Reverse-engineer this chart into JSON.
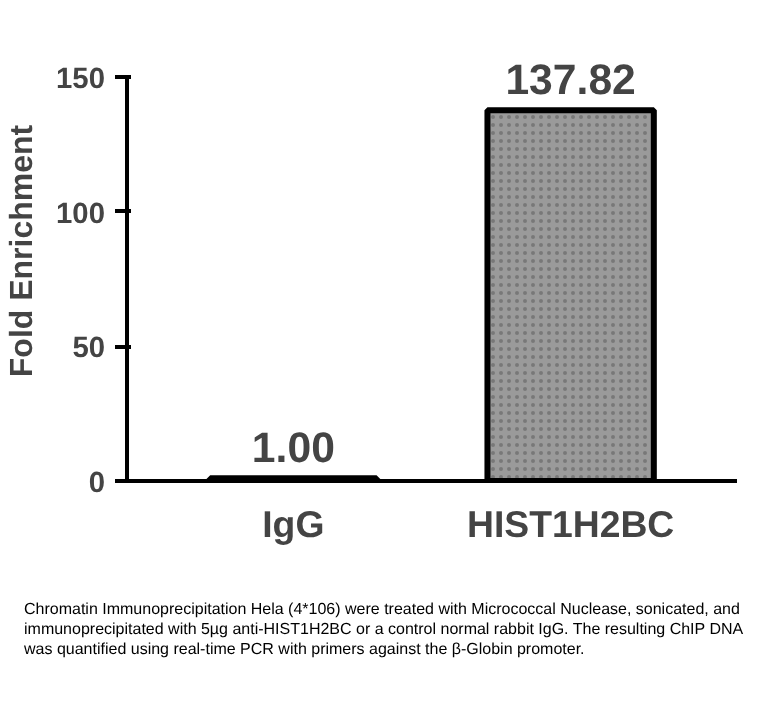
{
  "chart_data": {
    "type": "bar",
    "ylabel": "Fold Enrichment",
    "categories": [
      "IgG",
      "HIST1H2BC"
    ],
    "values": [
      1.0,
      137.82
    ],
    "value_labels": [
      "1.00",
      "137.82"
    ],
    "color": "#9a9a9a",
    "ylim": [
      0,
      150
    ],
    "yticks": [
      0,
      50,
      100,
      150
    ],
    "grid": false,
    "annotations": [
      "Chromatin Immunoprecipitation Hela (4*106) were treated with Micrococcal Nuclease, sonicated, and immunoprecipitated with 5µg anti-HIST1H2BC or a control normal rabbit IgG. The resulting ChIP DNA was quantified using real-time PCR with primers against the β-Globin promoter."
    ]
  }
}
